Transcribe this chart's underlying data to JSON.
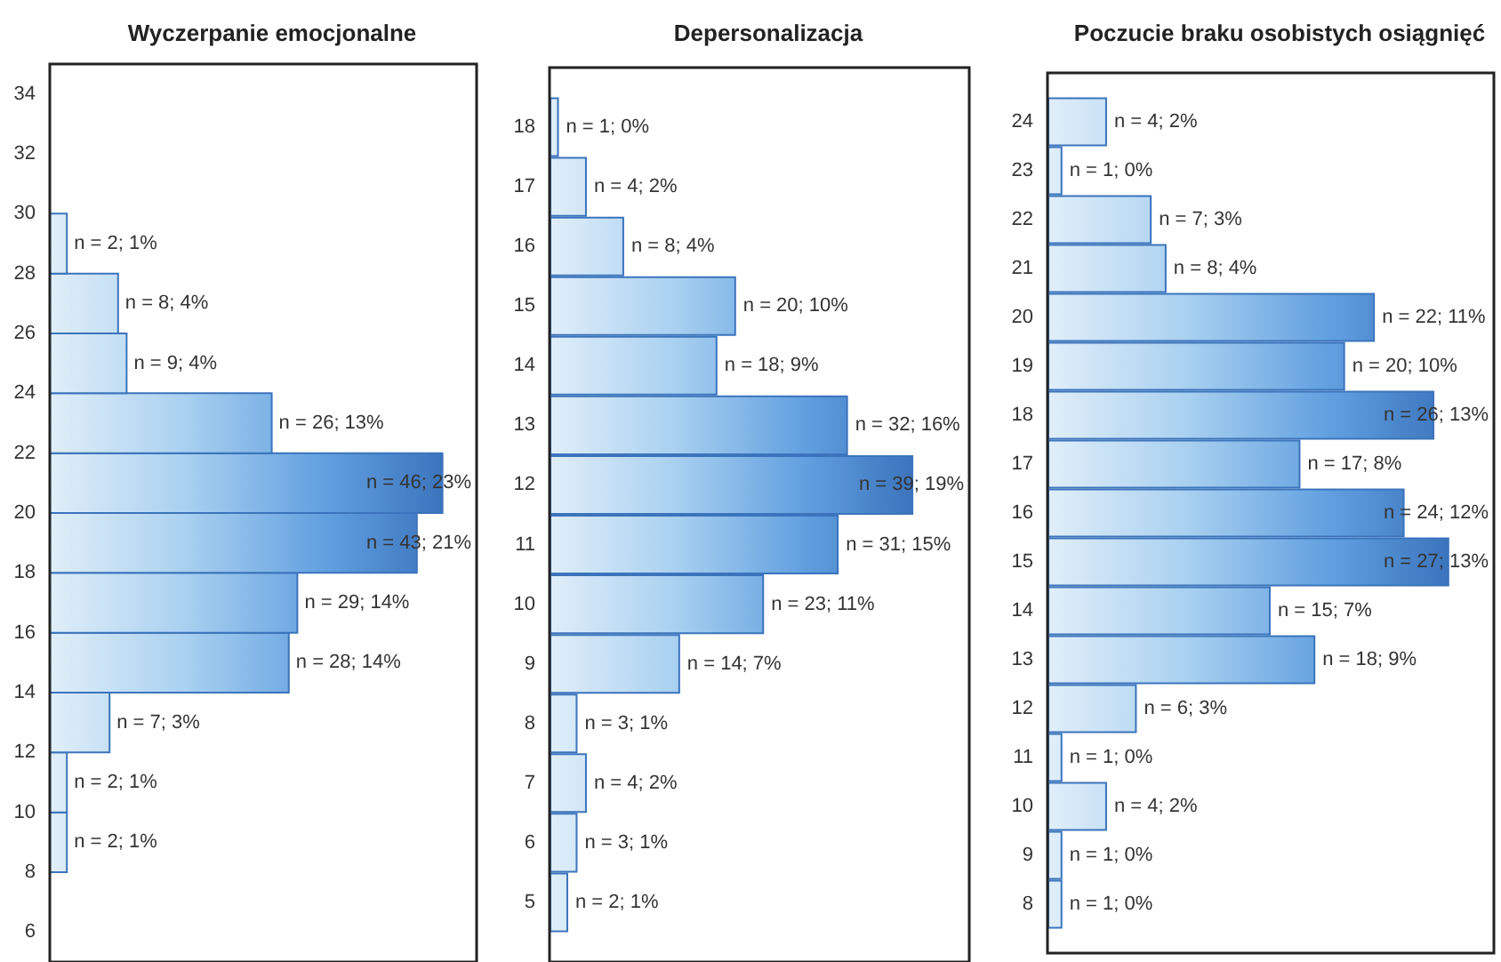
{
  "chart_data": [
    {
      "type": "bar",
      "orientation": "horizontal",
      "title": "Wyczerpanie emocjonalne",
      "x": [
        9,
        11,
        13,
        15,
        17,
        19,
        21,
        23,
        25,
        27,
        29
      ],
      "values": [
        2,
        2,
        7,
        28,
        29,
        43,
        46,
        26,
        9,
        8,
        2
      ],
      "value_labels": [
        "n = 2; 1%",
        "n = 2; 1%",
        "n = 7; 3%",
        "n = 28; 14%",
        "n = 29; 14%",
        "n = 43; 21%",
        "n = 46; 23%",
        "n = 26; 13%",
        "n = 9; 4%",
        "n = 8; 4%",
        "n = 2; 1%"
      ],
      "color": "#3b74bc",
      "xlim": [
        0,
        50
      ],
      "ylim": [
        5,
        35
      ],
      "yticks": [
        6,
        8,
        10,
        12,
        14,
        16,
        18,
        20,
        22,
        24,
        26,
        28,
        30,
        32,
        34
      ],
      "tick_labels": "y"
    },
    {
      "type": "bar",
      "orientation": "horizontal",
      "title": "Depersonalizacja",
      "categories": [
        "18",
        "17",
        "16",
        "15",
        "14",
        "13",
        "12",
        "11",
        "10",
        "9",
        "8",
        "7",
        "6",
        "5"
      ],
      "values": [
        1,
        4,
        8,
        20,
        18,
        32,
        39,
        31,
        23,
        14,
        3,
        4,
        3,
        2
      ],
      "value_labels": [
        "n = 1; 0%",
        "n = 4; 2%",
        "n = 8; 4%",
        "n = 20; 10%",
        "n = 18; 9%",
        "n = 32; 16%",
        "n = 39; 19%",
        "n = 31; 15%",
        "n = 23; 11%",
        "n = 14; 7%",
        "n = 3; 1%",
        "n = 4; 2%",
        "n = 3; 1%",
        "n = 2; 1%"
      ],
      "color": "#3b74bc",
      "xlim": [
        0,
        45
      ],
      "tick_labels": "y"
    },
    {
      "type": "bar",
      "orientation": "horizontal",
      "title": "Poczucie braku osobistych osiągnięć",
      "categories": [
        "24",
        "23",
        "22",
        "21",
        "20",
        "19",
        "18",
        "17",
        "16",
        "15",
        "14",
        "13",
        "12",
        "11",
        "10",
        "9",
        "8"
      ],
      "values": [
        4,
        1,
        7,
        8,
        22,
        20,
        26,
        17,
        24,
        27,
        15,
        18,
        6,
        1,
        4,
        1,
        1
      ],
      "value_labels": [
        "n = 4; 2%",
        "n = 1; 0%",
        "n = 7; 3%",
        "n = 8; 4%",
        "n = 22; 11%",
        "n = 20; 10%",
        "n = 26; 13%",
        "n = 17; 8%",
        "n = 24; 12%",
        "n = 27; 13%",
        "n = 15; 7%",
        "n = 18; 9%",
        "n = 6; 3%",
        "n = 1; 0%",
        "n = 4; 2%",
        "n = 1; 0%",
        "n = 1; 0%"
      ],
      "color": "#3b74bc",
      "xlim": [
        0,
        30
      ],
      "tick_labels": "y"
    }
  ]
}
